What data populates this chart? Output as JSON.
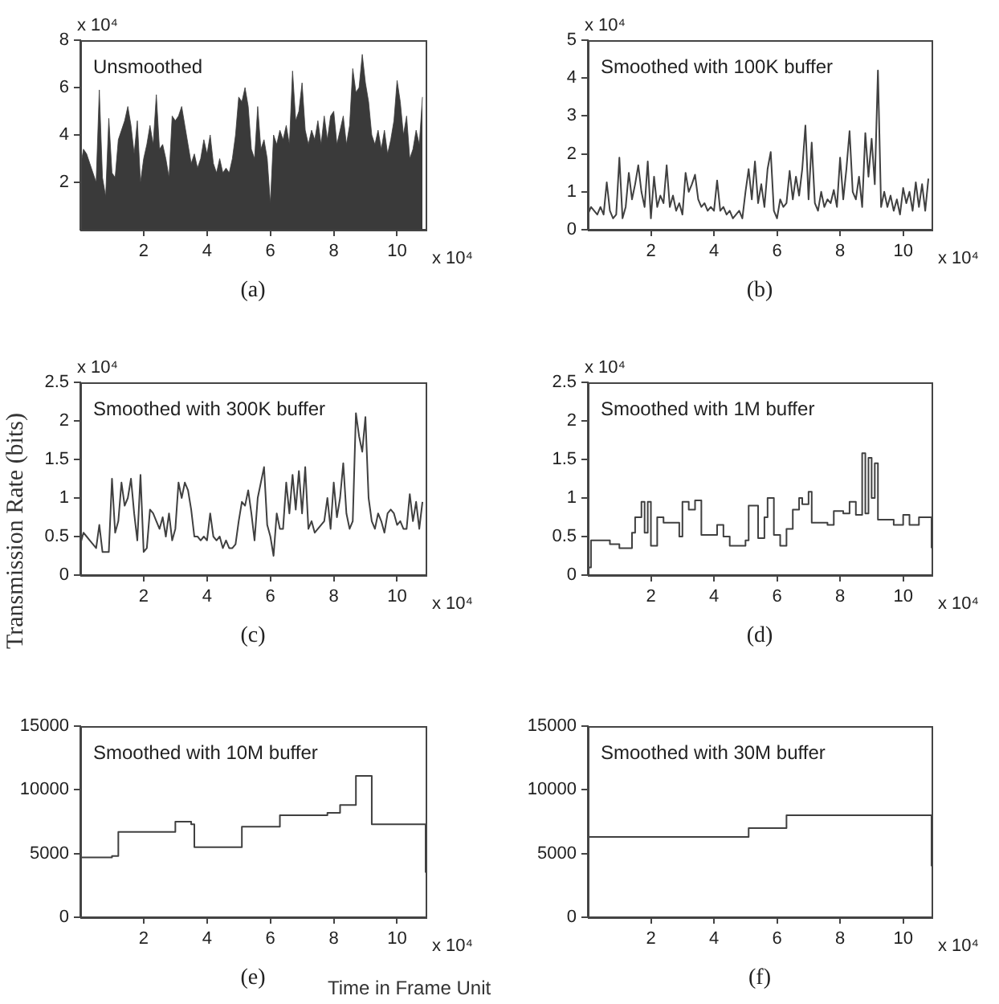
{
  "chart_data": [
    {
      "type": "area",
      "title": "Unsmoothed",
      "subtitle": "(a)",
      "annotations": [
        "x 10⁴",
        "x 10⁴"
      ],
      "color": "#3a3a3a",
      "xlim": [
        0,
        10.9
      ],
      "ylim": [
        0,
        8
      ],
      "xticks": [
        2,
        4,
        6,
        8,
        10
      ],
      "yticks": [
        2,
        4,
        6,
        8
      ],
      "x": [
        0,
        0.1,
        0.2,
        0.3,
        0.4,
        0.5,
        0.6,
        0.7,
        0.8,
        0.9,
        1.0,
        1.1,
        1.2,
        1.3,
        1.4,
        1.5,
        1.6,
        1.7,
        1.8,
        1.9,
        2.0,
        2.1,
        2.2,
        2.3,
        2.4,
        2.5,
        2.6,
        2.7,
        2.8,
        2.9,
        3.0,
        3.1,
        3.2,
        3.3,
        3.4,
        3.5,
        3.6,
        3.7,
        3.8,
        3.9,
        4.0,
        4.1,
        4.2,
        4.3,
        4.4,
        4.5,
        4.6,
        4.7,
        4.8,
        4.9,
        5.0,
        5.1,
        5.2,
        5.3,
        5.4,
        5.5,
        5.6,
        5.7,
        5.8,
        5.9,
        6.0,
        6.1,
        6.2,
        6.3,
        6.4,
        6.5,
        6.6,
        6.7,
        6.8,
        6.9,
        7.0,
        7.1,
        7.2,
        7.3,
        7.4,
        7.5,
        7.6,
        7.7,
        7.8,
        7.9,
        8.0,
        8.1,
        8.2,
        8.3,
        8.4,
        8.5,
        8.6,
        8.7,
        8.8,
        8.9,
        9.0,
        9.1,
        9.2,
        9.3,
        9.4,
        9.5,
        9.6,
        9.7,
        9.8,
        9.9,
        10.0,
        10.1,
        10.2,
        10.3,
        10.4,
        10.5,
        10.6,
        10.7,
        10.8
      ],
      "values": [
        2.6,
        3.4,
        3.2,
        2.8,
        2.4,
        2.0,
        5.9,
        2.2,
        1.4,
        4.7,
        2.4,
        2.2,
        3.8,
        4.2,
        4.6,
        5.2,
        4.4,
        3.2,
        4.6,
        2.0,
        3.0,
        3.6,
        4.4,
        3.6,
        5.7,
        3.4,
        3.6,
        3.0,
        2.2,
        4.8,
        4.6,
        4.8,
        5.2,
        4.4,
        3.6,
        2.8,
        3.2,
        2.6,
        3.0,
        3.8,
        3.2,
        4.0,
        2.8,
        2.4,
        3.0,
        2.4,
        2.6,
        2.4,
        3.0,
        4.0,
        5.6,
        5.4,
        6.0,
        5.2,
        3.4,
        3.0,
        5.2,
        3.4,
        3.8,
        3.0,
        1.1,
        4.0,
        3.6,
        4.2,
        3.8,
        4.4,
        3.6,
        6.7,
        4.6,
        5.0,
        6.2,
        4.2,
        3.6,
        4.2,
        3.8,
        4.6,
        3.6,
        4.8,
        3.8,
        4.8,
        5.0,
        3.6,
        4.2,
        4.8,
        3.6,
        4.4,
        6.8,
        5.8,
        6.0,
        7.4,
        6.2,
        5.4,
        4.0,
        3.6,
        4.2,
        3.4,
        4.2,
        3.2,
        3.8,
        4.6,
        6.3,
        5.4,
        4.0,
        4.8,
        3.0,
        3.4,
        4.2,
        3.6,
        5.6
      ]
    },
    {
      "type": "line",
      "title": "Smoothed with 100K buffer",
      "subtitle": "(b)",
      "annotations": [
        "x 10⁴",
        "x 10⁴"
      ],
      "color": "#404040",
      "xlim": [
        0,
        10.9
      ],
      "ylim": [
        0,
        5
      ],
      "xticks": [
        2,
        4,
        6,
        8,
        10
      ],
      "yticks": [
        0,
        1,
        2,
        3,
        4,
        5
      ],
      "x": [
        0,
        0.1,
        0.2,
        0.3,
        0.4,
        0.5,
        0.6,
        0.7,
        0.8,
        0.9,
        1.0,
        1.1,
        1.2,
        1.3,
        1.4,
        1.5,
        1.6,
        1.7,
        1.8,
        1.9,
        2.0,
        2.1,
        2.2,
        2.3,
        2.4,
        2.5,
        2.6,
        2.7,
        2.8,
        2.9,
        3.0,
        3.1,
        3.2,
        3.3,
        3.4,
        3.5,
        3.6,
        3.7,
        3.8,
        3.9,
        4.0,
        4.1,
        4.2,
        4.3,
        4.4,
        4.5,
        4.6,
        4.7,
        4.8,
        4.9,
        5.0,
        5.1,
        5.2,
        5.3,
        5.4,
        5.5,
        5.6,
        5.7,
        5.8,
        5.9,
        6.0,
        6.1,
        6.2,
        6.3,
        6.4,
        6.5,
        6.6,
        6.7,
        6.8,
        6.9,
        7.0,
        7.1,
        7.2,
        7.3,
        7.4,
        7.5,
        7.6,
        7.7,
        7.8,
        7.9,
        8.0,
        8.1,
        8.2,
        8.3,
        8.4,
        8.5,
        8.6,
        8.7,
        8.8,
        8.9,
        9.0,
        9.1,
        9.2,
        9.3,
        9.4,
        9.5,
        9.6,
        9.7,
        9.8,
        9.9,
        10.0,
        10.1,
        10.2,
        10.3,
        10.4,
        10.5,
        10.6,
        10.7,
        10.8
      ],
      "values": [
        0.4,
        0.6,
        0.5,
        0.4,
        0.6,
        0.4,
        1.25,
        0.5,
        0.3,
        0.4,
        1.9,
        0.3,
        0.6,
        1.5,
        0.8,
        1.2,
        1.7,
        1.0,
        0.6,
        1.8,
        0.3,
        1.4,
        0.6,
        0.9,
        0.7,
        1.7,
        0.6,
        0.9,
        0.5,
        0.7,
        0.4,
        1.5,
        1.0,
        1.2,
        1.45,
        0.8,
        0.6,
        0.7,
        0.5,
        0.6,
        0.5,
        1.3,
        0.5,
        0.6,
        0.4,
        0.5,
        0.3,
        0.4,
        0.5,
        0.3,
        1.0,
        1.6,
        0.8,
        1.8,
        0.7,
        1.2,
        0.6,
        1.6,
        2.05,
        0.5,
        0.3,
        0.8,
        0.6,
        0.7,
        1.55,
        0.8,
        1.4,
        0.9,
        1.6,
        2.75,
        0.8,
        2.3,
        0.7,
        0.5,
        1.0,
        0.6,
        0.8,
        0.7,
        1.05,
        0.6,
        1.9,
        0.8,
        1.6,
        2.6,
        1.0,
        0.8,
        1.4,
        0.6,
        2.55,
        1.4,
        2.4,
        1.2,
        4.2,
        0.6,
        1.0,
        0.6,
        0.9,
        0.5,
        0.8,
        0.4,
        1.1,
        0.7,
        1.0,
        0.5,
        1.25,
        0.6,
        1.2,
        0.5,
        1.35
      ]
    },
    {
      "type": "line",
      "title": "Smoothed with 300K buffer",
      "subtitle": "(c)",
      "ylabel": "Transmission Rate (bits)",
      "annotations": [
        "x 10⁴",
        "x 10⁴"
      ],
      "color": "#404040",
      "xlim": [
        0,
        10.9
      ],
      "ylim": [
        0,
        2.5
      ],
      "xticks": [
        2,
        4,
        6,
        8,
        10
      ],
      "yticks": [
        0,
        0.5,
        1,
        1.5,
        2,
        2.5
      ],
      "x": [
        0,
        0.1,
        0.2,
        0.3,
        0.4,
        0.5,
        0.6,
        0.7,
        0.8,
        0.9,
        1.0,
        1.1,
        1.2,
        1.3,
        1.4,
        1.5,
        1.6,
        1.7,
        1.8,
        1.9,
        2.0,
        2.1,
        2.2,
        2.3,
        2.4,
        2.5,
        2.6,
        2.7,
        2.8,
        2.9,
        3.0,
        3.1,
        3.2,
        3.3,
        3.4,
        3.5,
        3.6,
        3.7,
        3.8,
        3.9,
        4.0,
        4.1,
        4.2,
        4.3,
        4.4,
        4.5,
        4.6,
        4.7,
        4.8,
        4.9,
        5.0,
        5.1,
        5.2,
        5.3,
        5.4,
        5.5,
        5.6,
        5.7,
        5.8,
        5.9,
        6.0,
        6.1,
        6.2,
        6.3,
        6.4,
        6.5,
        6.6,
        6.7,
        6.8,
        6.9,
        7.0,
        7.1,
        7.2,
        7.3,
        7.4,
        7.5,
        7.6,
        7.7,
        7.8,
        7.9,
        8.0,
        8.1,
        8.2,
        8.3,
        8.4,
        8.5,
        8.6,
        8.7,
        8.8,
        8.9,
        9.0,
        9.1,
        9.2,
        9.3,
        9.4,
        9.5,
        9.6,
        9.7,
        9.8,
        9.9,
        10.0,
        10.1,
        10.2,
        10.3,
        10.4,
        10.5,
        10.6,
        10.7,
        10.8
      ],
      "values": [
        0.4,
        0.55,
        0.5,
        0.45,
        0.4,
        0.35,
        0.65,
        0.3,
        0.3,
        0.3,
        1.25,
        0.55,
        0.7,
        1.2,
        0.9,
        1.0,
        1.25,
        0.8,
        0.45,
        1.3,
        0.3,
        0.35,
        0.85,
        0.8,
        0.7,
        0.6,
        0.75,
        0.5,
        0.8,
        0.45,
        0.6,
        1.2,
        1.0,
        1.2,
        1.1,
        0.85,
        0.5,
        0.5,
        0.45,
        0.5,
        0.45,
        0.8,
        0.5,
        0.45,
        0.5,
        0.35,
        0.45,
        0.35,
        0.35,
        0.4,
        0.7,
        0.95,
        0.9,
        1.1,
        0.8,
        0.45,
        1.0,
        1.2,
        1.4,
        0.65,
        0.5,
        0.25,
        0.8,
        0.6,
        0.6,
        1.2,
        0.8,
        1.3,
        0.85,
        1.35,
        0.8,
        1.4,
        0.6,
        0.7,
        0.55,
        0.6,
        0.65,
        0.7,
        1.0,
        0.6,
        1.2,
        0.75,
        1.0,
        1.45,
        0.8,
        0.6,
        0.7,
        2.1,
        1.8,
        1.6,
        2.05,
        1.0,
        0.7,
        0.6,
        0.8,
        0.7,
        0.55,
        0.8,
        0.85,
        0.8,
        0.65,
        0.7,
        0.6,
        0.6,
        1.05,
        0.7,
        0.95,
        0.6,
        0.95
      ]
    },
    {
      "type": "step",
      "title": "Smoothed with 1M buffer",
      "subtitle": "(d)",
      "annotations": [
        "x 10⁴",
        "x 10⁴"
      ],
      "color": "#404040",
      "xlim": [
        0,
        10.9
      ],
      "ylim": [
        0,
        2.5
      ],
      "xticks": [
        2,
        4,
        6,
        8,
        10
      ],
      "yticks": [
        0,
        0.5,
        1,
        1.5,
        2,
        2.5
      ],
      "x": [
        0,
        0.1,
        0.5,
        0.7,
        1.0,
        1.4,
        1.5,
        1.7,
        1.8,
        1.9,
        2.0,
        2.2,
        2.4,
        2.9,
        3.0,
        3.2,
        3.4,
        3.6,
        4.0,
        4.1,
        4.3,
        4.5,
        5.0,
        5.1,
        5.4,
        5.6,
        5.7,
        5.9,
        6.1,
        6.3,
        6.5,
        6.7,
        6.8,
        7.0,
        7.1,
        7.6,
        7.8,
        8.1,
        8.3,
        8.5,
        8.7,
        8.8,
        8.9,
        9.0,
        9.1,
        9.2,
        9.7,
        10.0,
        10.2,
        10.5,
        10.9
      ],
      "values": [
        0.1,
        0.45,
        0.45,
        0.4,
        0.35,
        0.55,
        0.75,
        0.95,
        0.55,
        0.95,
        0.38,
        0.75,
        0.68,
        0.5,
        0.95,
        0.85,
        0.97,
        0.52,
        0.52,
        0.65,
        0.5,
        0.38,
        0.45,
        0.9,
        0.48,
        0.75,
        1.0,
        0.52,
        0.38,
        0.6,
        0.85,
        1.0,
        0.92,
        1.08,
        0.68,
        0.65,
        0.83,
        0.8,
        0.95,
        0.78,
        1.58,
        0.8,
        1.52,
        1.0,
        1.45,
        0.72,
        0.65,
        0.78,
        0.65,
        0.75,
        0.35
      ]
    },
    {
      "type": "step",
      "title": "Smoothed with 10M buffer",
      "subtitle": "(e)",
      "xlabel": "Time in Frame Unit",
      "annotations": [
        "x 10⁴"
      ],
      "color": "#404040",
      "xlim": [
        0,
        10.9
      ],
      "ylim": [
        0,
        15000
      ],
      "xticks": [
        2,
        4,
        6,
        8,
        10
      ],
      "yticks": [
        0,
        5000,
        10000,
        15000
      ],
      "x": [
        0,
        1.0,
        1.2,
        3.0,
        3.5,
        3.6,
        5.1,
        6.3,
        7.8,
        8.2,
        8.7,
        9.2,
        10.9
      ],
      "values": [
        4700,
        4800,
        6700,
        7500,
        7300,
        5500,
        7100,
        8000,
        8200,
        8800,
        11100,
        7300,
        3500
      ]
    },
    {
      "type": "step",
      "title": "Smoothed with 30M buffer",
      "subtitle": "(f)",
      "annotations": [
        "x 10⁴"
      ],
      "color": "#404040",
      "xlim": [
        0,
        10.9
      ],
      "ylim": [
        0,
        15000
      ],
      "xticks": [
        2,
        4,
        6,
        8,
        10
      ],
      "yticks": [
        0,
        5000,
        10000,
        15000
      ],
      "x": [
        0,
        5.1,
        6.3,
        10.9
      ],
      "values": [
        6300,
        7000,
        8000,
        4000
      ]
    }
  ]
}
